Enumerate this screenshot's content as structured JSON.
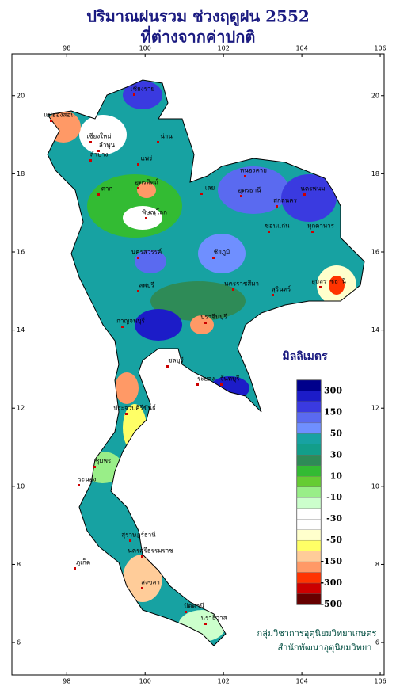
{
  "title": {
    "line1": "ปริมาณฝนรวม ช่วงฤดูฝน 2552",
    "line2": "ที่ต่างจากค่าปกติ"
  },
  "map": {
    "xlim": [
      96.6,
      106.1
    ],
    "ylim": [
      5.17,
      21.07
    ],
    "xticks": [
      98,
      100,
      102,
      104,
      106
    ],
    "yticks": [
      6,
      8,
      10,
      12,
      14,
      16,
      18,
      20
    ]
  },
  "legend": {
    "title": "มิลลิเมตร",
    "colors": [
      "#00008b",
      "#1c1cc8",
      "#3a3ae0",
      "#5a6af0",
      "#6f8fff",
      "#17a2a2",
      "#129e8a",
      "#2e8b57",
      "#33bb33",
      "#66cc33",
      "#99ee88",
      "#ccffcc",
      "#ffffff",
      "#ffffff",
      "#ffffcc",
      "#ffff66",
      "#ffcc99",
      "#ff9966",
      "#ff3300",
      "#cc0000",
      "#660000"
    ],
    "ticks": [
      300,
      150,
      50,
      30,
      10,
      -10,
      -30,
      -50,
      -150,
      -300,
      -500
    ]
  },
  "places": [
    "เชียงราย",
    "แม่ฮ่องสอน",
    "เชียงใหม่",
    "ลำพูน",
    "น่าน",
    "ลำปาง",
    "แพร่",
    "อุตรดิตถ์",
    "ตาก",
    "พิษณุโลก",
    "หนองคาย",
    "อุดรธานี",
    "นครพนม",
    "สกลนคร",
    "มุกดาหาร",
    "ขอนแก่น",
    "เลย",
    "ชัยภูมิ",
    "นครสวรรค์",
    "ลพบุรี",
    "นครราชสีมา",
    "อุบลราชธานี",
    "สุรินทร์",
    "กาญจนบุรี",
    "ปราจีนบุรี",
    "ชลบุรี",
    "ระยอง",
    "จันทบุรี",
    "ประจวบคีรีขันธ์",
    "ชุมพร",
    "ระนอง",
    "สุราษฎร์ธานี",
    "ภูเก็ต",
    "นครศรีธรรมราช",
    "สงขลา",
    "ปัตตานี",
    "นราธิวาส"
  ],
  "credits": [
    "กลุ่มวิชาการอุตุนิยมวิทยาเกษตร",
    "สำนักพัฒนาอุตุนิยมวิทยา"
  ]
}
